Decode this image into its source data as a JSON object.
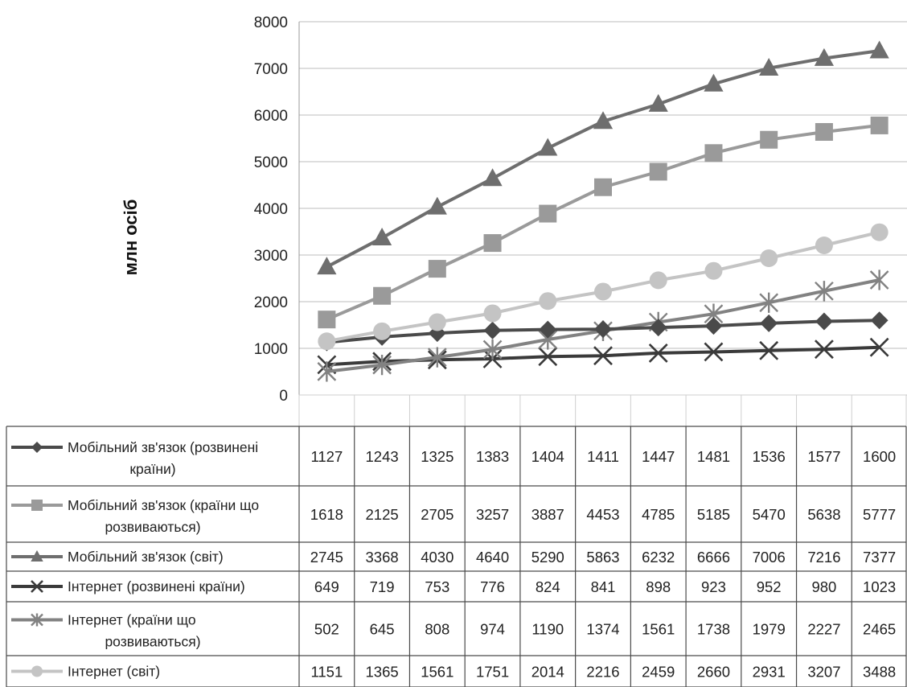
{
  "chart_data": {
    "type": "line",
    "title": "",
    "xlabel": "",
    "ylabel": "млн осіб",
    "ylim": [
      0,
      8000
    ],
    "yticks": [
      0,
      1000,
      2000,
      3000,
      4000,
      5000,
      6000,
      7000,
      8000
    ],
    "grid": true,
    "legend": "table-left",
    "series": [
      {
        "name": "Мобільний зв'язок (розвинені країни)",
        "label_lines": [
          "Мобільний зв'язок (розвинені",
          "країни)"
        ],
        "marker": "diamond",
        "color": "#4a4a4a",
        "values": [
          1127,
          1243,
          1325,
          1383,
          1404,
          1411,
          1447,
          1481,
          1536,
          1577,
          1600
        ]
      },
      {
        "name": "Мобільний зв'язок (країни що розвиваються)",
        "label_lines": [
          "Мобільний зв'язок (країни що",
          "розвиваються)"
        ],
        "marker": "square",
        "color": "#9a9a9a",
        "values": [
          1618,
          2125,
          2705,
          3257,
          3887,
          4453,
          4785,
          5185,
          5470,
          5638,
          5777
        ]
      },
      {
        "name": "Мобільний зв'язок (світ)",
        "label_lines": [
          "Мобільний зв'язок (світ)"
        ],
        "marker": "triangle",
        "color": "#6e6e6e",
        "values": [
          2745,
          3368,
          4030,
          4640,
          5290,
          5863,
          6232,
          6666,
          7006,
          7216,
          7377
        ]
      },
      {
        "name": "Інтернет (розвинені країни)",
        "label_lines": [
          "Інтернет (розвинені країни)"
        ],
        "marker": "x",
        "color": "#3a3a3a",
        "values": [
          649,
          719,
          753,
          776,
          824,
          841,
          898,
          923,
          952,
          980,
          1023
        ]
      },
      {
        "name": "Інтернет (країни що розвиваються)",
        "label_lines": [
          "Інтернет (країни що",
          "розвиваються)"
        ],
        "marker": "star",
        "color": "#828282",
        "values": [
          502,
          645,
          808,
          974,
          1190,
          1374,
          1561,
          1738,
          1979,
          2227,
          2465
        ]
      },
      {
        "name": "Інтернет (світ)",
        "label_lines": [
          "Інтернет (світ)"
        ],
        "marker": "circle",
        "color": "#c4c4c4",
        "values": [
          1151,
          1365,
          1561,
          1751,
          2014,
          2216,
          2459,
          2660,
          2931,
          3207,
          3488
        ]
      }
    ]
  }
}
